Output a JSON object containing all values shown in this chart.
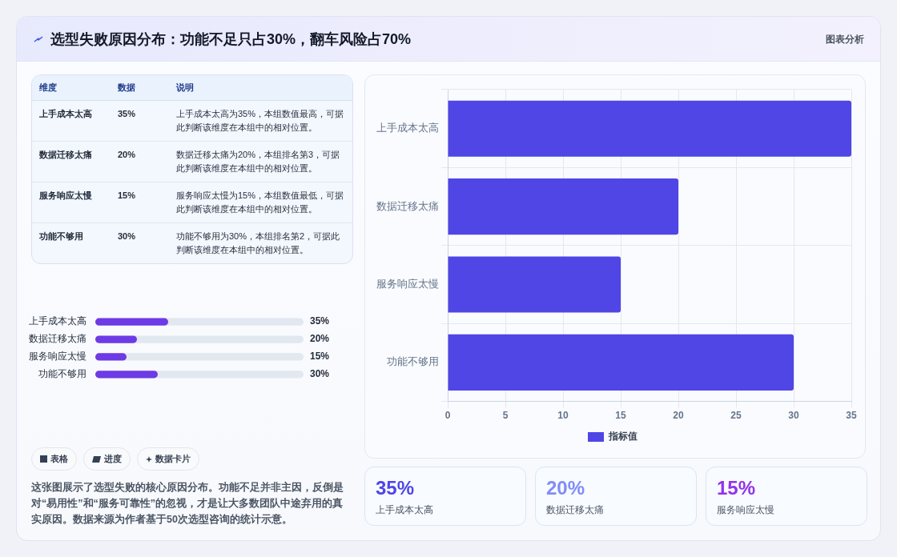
{
  "chart_data": [
    {
      "type": "bar",
      "title": "选型失败原因分布：功能不足只占30%，翻车风险占70%",
      "orientation": "horizontal",
      "categories": [
        "上手成本太高",
        "数据迁移太痛",
        "服务响应太慢",
        "功能不够用"
      ],
      "series": [
        {
          "name": "指标值",
          "color": "#4f46e5",
          "values": [
            35,
            20,
            15,
            30
          ]
        }
      ],
      "xlim": [
        0,
        35
      ],
      "xticks": [
        0,
        5,
        10,
        15,
        20,
        25,
        30,
        35
      ],
      "grid": true,
      "legend": "bottom"
    },
    {
      "type": "bar",
      "orientation": "horizontal",
      "categories": [
        "上手成本太高",
        "数据迁移太痛",
        "服务响应太慢",
        "功能不够用"
      ],
      "values": [
        35,
        20,
        15,
        30
      ],
      "color": "#6d3ae6",
      "value_labels": [
        "35%",
        "20%",
        "15%",
        "30%"
      ],
      "xlim": [
        0,
        100
      ],
      "tick_labels": "y"
    },
    {
      "type": "other",
      "annotations": [
        "维度",
        "数据",
        "说明",
        "上手成本太高",
        "35%",
        "上手成本太高为35%，本组数值最高，可据此判断该维度在本组中的相对位置。",
        "数据迁移太痛",
        "20%",
        "数据迁移太痛为20%，本组排名第3，可据此判断该维度在本组中的相对位置。",
        "服务响应太慢",
        "15%",
        "服务响应太慢为15%，本组数值最低，可据此判断该维度在本组中的相对位置。",
        "功能不够用",
        "30%",
        "功能不够用为30%，本组排名第2，可据此判断该维度在本组中的相对位置。",
        "表格",
        "进度",
        "数据卡片",
        "这张图展示了选型失败的核心原因分布。功能不足并非主因，反倒是对“易用性”和“服务可靠性”的忽视，才是让大多数团队中途弃用的真实原因。数据来源为作者基于50次选型咨询的统计示意。",
        "35%",
        "上手成本太高",
        "20%",
        "数据迁移太痛",
        "15%",
        "服务响应太慢",
        "图表分析"
      ]
    }
  ]
}
